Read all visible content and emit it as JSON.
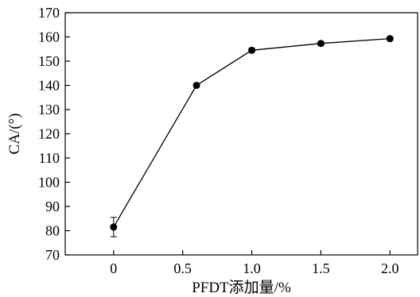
{
  "chart_data": {
    "type": "line",
    "title": "",
    "xlabel": "PFDT添加量/%",
    "ylabel": "CA/(°)",
    "xlim": [
      -0.35,
      2.2
    ],
    "ylim": [
      70,
      170
    ],
    "xticks": [
      0,
      0.5,
      1.0,
      1.5,
      2.0
    ],
    "xtick_labels": [
      "0",
      "0.5",
      "1.0",
      "1.5",
      "2.0"
    ],
    "yticks": [
      70,
      80,
      90,
      100,
      110,
      120,
      130,
      140,
      150,
      160,
      170
    ],
    "ytick_labels": [
      "70",
      "80",
      "90",
      "100",
      "110",
      "120",
      "130",
      "140",
      "150",
      "160",
      "170"
    ],
    "grid": false,
    "legend": "none",
    "series": [
      {
        "x": [
          0,
          0.6,
          1.0,
          1.5,
          2.0
        ],
        "y": [
          81.5,
          140,
          154.5,
          157.3,
          159.3
        ],
        "error": [
          4,
          0.7,
          0.8,
          0.8,
          0.7
        ]
      }
    ]
  }
}
